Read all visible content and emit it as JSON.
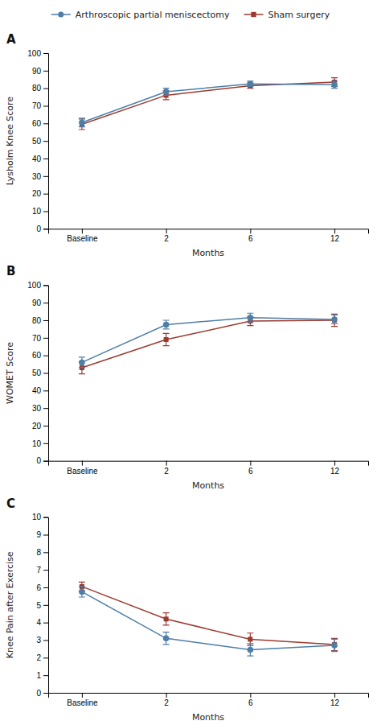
{
  "chart_data": [
    {
      "type": "line",
      "title": "A",
      "xlabel": "Months",
      "ylabel": "Lysholm Knee Score",
      "categories": [
        "Baseline",
        "2",
        "6",
        "12"
      ],
      "legend": "top",
      "ylim": [
        0,
        100
      ],
      "yticks": [
        0,
        10,
        20,
        30,
        40,
        50,
        60,
        70,
        80,
        90,
        100
      ],
      "series": [
        {
          "name": "Arthroscopic partial meniscectomy",
          "color": "#4d7ea8",
          "marker": "circle",
          "values": [
            60.5,
            78.0,
            82.5,
            82.0
          ],
          "errors": [
            2.5,
            2.0,
            1.5,
            2.0
          ]
        },
        {
          "name": "Sham surgery",
          "color": "#9b3a2e",
          "marker": "square",
          "values": [
            59.5,
            76.0,
            81.5,
            83.5
          ],
          "errors": [
            3.0,
            2.5,
            1.5,
            2.5
          ]
        }
      ]
    },
    {
      "type": "line",
      "title": "B",
      "xlabel": "Months",
      "ylabel": "WOMET Score",
      "categories": [
        "Baseline",
        "2",
        "6",
        "12"
      ],
      "ylim": [
        0,
        100
      ],
      "yticks": [
        0,
        10,
        20,
        30,
        40,
        50,
        60,
        70,
        80,
        90,
        100
      ],
      "series": [
        {
          "name": "Arthroscopic partial meniscectomy",
          "color": "#4d7ea8",
          "marker": "circle",
          "values": [
            56.0,
            77.5,
            81.5,
            80.5
          ],
          "errors": [
            3.0,
            2.5,
            2.5,
            2.5
          ]
        },
        {
          "name": "Sham surgery",
          "color": "#9b3a2e",
          "marker": "square",
          "values": [
            53.0,
            69.0,
            79.5,
            80.0
          ],
          "errors": [
            3.5,
            3.5,
            2.5,
            3.5
          ]
        }
      ]
    },
    {
      "type": "line",
      "title": "C",
      "xlabel": "Months",
      "ylabel": "Knee Pain after Exercise",
      "categories": [
        "Baseline",
        "2",
        "6",
        "12"
      ],
      "ylim": [
        0,
        10
      ],
      "yticks": [
        0,
        1,
        2,
        3,
        4,
        5,
        6,
        7,
        8,
        9,
        10
      ],
      "series": [
        {
          "name": "Arthroscopic partial meniscectomy",
          "color": "#4d7ea8",
          "marker": "circle",
          "values": [
            5.75,
            3.1,
            2.45,
            2.7
          ],
          "errors": [
            0.3,
            0.35,
            0.35,
            0.35
          ]
        },
        {
          "name": "Sham surgery",
          "color": "#9b3a2e",
          "marker": "square",
          "values": [
            6.05,
            4.2,
            3.05,
            2.75
          ],
          "errors": [
            0.25,
            0.35,
            0.35,
            0.35
          ]
        }
      ]
    }
  ]
}
